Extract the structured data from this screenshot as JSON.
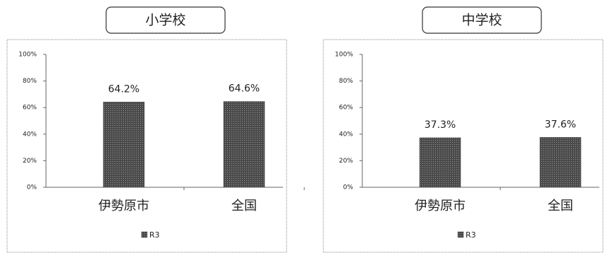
{
  "chart_data": [
    {
      "type": "bar",
      "title": "小学校",
      "categories": [
        "伊勢原市",
        "全国"
      ],
      "series": [
        {
          "name": "R3",
          "color": "#4a4a4a",
          "values": [
            64.2,
            64.6
          ],
          "value_labels": [
            "64.2%",
            "64.6%"
          ]
        }
      ],
      "ylim": [
        0,
        100
      ],
      "yticks": [
        {
          "value": 0,
          "label": "0%"
        },
        {
          "value": 20,
          "label": "20%"
        },
        {
          "value": 40,
          "label": "40%"
        },
        {
          "value": 60,
          "label": "60%"
        },
        {
          "value": 80,
          "label": "80%"
        },
        {
          "value": 100,
          "label": "100%"
        }
      ],
      "grid": false,
      "legend": "bottom"
    },
    {
      "type": "bar",
      "title": "中学校",
      "categories": [
        "伊勢原市",
        "全国"
      ],
      "series": [
        {
          "name": "R3",
          "color": "#4a4a4a",
          "values": [
            37.3,
            37.6
          ],
          "value_labels": [
            "37.3%",
            "37.6%"
          ]
        }
      ],
      "ylim": [
        0,
        100
      ],
      "yticks": [
        {
          "value": 0,
          "label": "0%"
        },
        {
          "value": 20,
          "label": "20%"
        },
        {
          "value": 40,
          "label": "40%"
        },
        {
          "value": 60,
          "label": "60%"
        },
        {
          "value": 80,
          "label": "80%"
        },
        {
          "value": 100,
          "label": "100%"
        }
      ],
      "grid": false,
      "legend": "bottom"
    }
  ]
}
